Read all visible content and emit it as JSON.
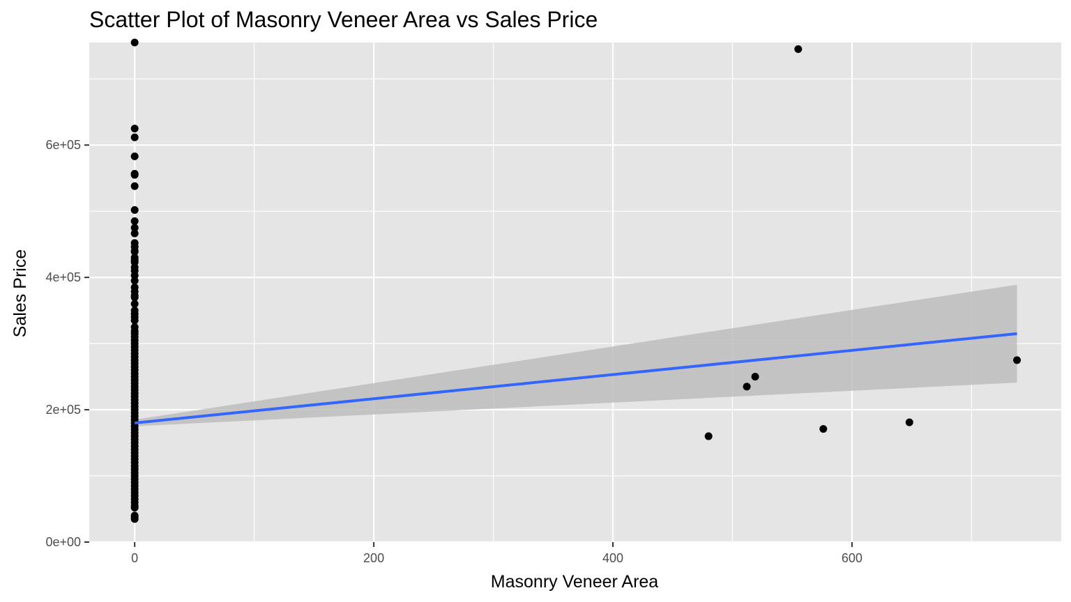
{
  "chart_data": {
    "type": "scatter",
    "title": "Scatter Plot of Masonry Veneer Area vs Sales Price",
    "xlabel": "Masonry Veneer Area",
    "ylabel": "Sales Price",
    "xlim": [
      -38,
      775
    ],
    "ylim": [
      0,
      755000
    ],
    "x_ticks": [
      0,
      200,
      400,
      600
    ],
    "x_tick_labels": [
      "0",
      "200",
      "400",
      "600"
    ],
    "x_minor_ticks": [
      100,
      300,
      500,
      700
    ],
    "y_ticks": [
      0,
      200000,
      400000,
      600000
    ],
    "y_tick_labels": [
      "0e+00",
      "2e+05",
      "4e+05",
      "6e+05"
    ],
    "y_minor_ticks": [
      100000,
      300000,
      500000,
      700000
    ],
    "grid": true,
    "colors": {
      "panel_background": "#e5e5e5",
      "grid": "#ffffff",
      "points": "#000000",
      "fit_line": "#3366ff",
      "confidence_band": "#bdbdbd"
    },
    "points": [
      {
        "x": 0,
        "y": 755000
      },
      {
        "x": 0,
        "y": 625000
      },
      {
        "x": 0,
        "y": 611657
      },
      {
        "x": 0,
        "y": 582933
      },
      {
        "x": 0,
        "y": 556581
      },
      {
        "x": 0,
        "y": 555000
      },
      {
        "x": 0,
        "y": 538000
      },
      {
        "x": 0,
        "y": 501837
      },
      {
        "x": 0,
        "y": 485000
      },
      {
        "x": 0,
        "y": 475000
      },
      {
        "x": 0,
        "y": 466500
      },
      {
        "x": 0,
        "y": 451950
      },
      {
        "x": 0,
        "y": 446261
      },
      {
        "x": 0,
        "y": 440000
      },
      {
        "x": 0,
        "y": 438780
      },
      {
        "x": 0,
        "y": 430000
      },
      {
        "x": 0,
        "y": 426000
      },
      {
        "x": 0,
        "y": 423000
      },
      {
        "x": 0,
        "y": 415298
      },
      {
        "x": 0,
        "y": 410000
      },
      {
        "x": 0,
        "y": 402861
      },
      {
        "x": 0,
        "y": 395000
      },
      {
        "x": 0,
        "y": 385000
      },
      {
        "x": 0,
        "y": 378500
      },
      {
        "x": 0,
        "y": 372500
      },
      {
        "x": 0,
        "y": 369900
      },
      {
        "x": 0,
        "y": 360000
      },
      {
        "x": 0,
        "y": 350000
      },
      {
        "x": 0,
        "y": 345000
      },
      {
        "x": 0,
        "y": 340000
      },
      {
        "x": 0,
        "y": 335000
      },
      {
        "x": 0,
        "y": 325000
      },
      {
        "x": 0,
        "y": 319000
      },
      {
        "x": 0,
        "y": 315000
      },
      {
        "x": 0,
        "y": 310000
      },
      {
        "x": 0,
        "y": 305000
      },
      {
        "x": 0,
        "y": 300000
      },
      {
        "x": 0,
        "y": 295000
      },
      {
        "x": 0,
        "y": 290000
      },
      {
        "x": 0,
        "y": 285000
      },
      {
        "x": 0,
        "y": 280000
      },
      {
        "x": 0,
        "y": 275000
      },
      {
        "x": 0,
        "y": 270000
      },
      {
        "x": 0,
        "y": 265000
      },
      {
        "x": 0,
        "y": 260000
      },
      {
        "x": 0,
        "y": 255000
      },
      {
        "x": 0,
        "y": 250000
      },
      {
        "x": 0,
        "y": 245000
      },
      {
        "x": 0,
        "y": 240000
      },
      {
        "x": 0,
        "y": 235000
      },
      {
        "x": 0,
        "y": 230000
      },
      {
        "x": 0,
        "y": 225000
      },
      {
        "x": 0,
        "y": 220000
      },
      {
        "x": 0,
        "y": 215000
      },
      {
        "x": 0,
        "y": 210000
      },
      {
        "x": 0,
        "y": 205000
      },
      {
        "x": 0,
        "y": 200000
      },
      {
        "x": 0,
        "y": 195000
      },
      {
        "x": 0,
        "y": 190000
      },
      {
        "x": 0,
        "y": 185000
      },
      {
        "x": 0,
        "y": 180000
      },
      {
        "x": 0,
        "y": 175000
      },
      {
        "x": 0,
        "y": 170000
      },
      {
        "x": 0,
        "y": 165000
      },
      {
        "x": 0,
        "y": 160000
      },
      {
        "x": 0,
        "y": 155000
      },
      {
        "x": 0,
        "y": 150000
      },
      {
        "x": 0,
        "y": 145000
      },
      {
        "x": 0,
        "y": 140000
      },
      {
        "x": 0,
        "y": 135000
      },
      {
        "x": 0,
        "y": 130000
      },
      {
        "x": 0,
        "y": 125000
      },
      {
        "x": 0,
        "y": 120000
      },
      {
        "x": 0,
        "y": 115000
      },
      {
        "x": 0,
        "y": 110000
      },
      {
        "x": 0,
        "y": 105000
      },
      {
        "x": 0,
        "y": 100000
      },
      {
        "x": 0,
        "y": 95000
      },
      {
        "x": 0,
        "y": 90000
      },
      {
        "x": 0,
        "y": 85000
      },
      {
        "x": 0,
        "y": 80000
      },
      {
        "x": 0,
        "y": 75000
      },
      {
        "x": 0,
        "y": 70000
      },
      {
        "x": 0,
        "y": 65000
      },
      {
        "x": 0,
        "y": 60000
      },
      {
        "x": 0,
        "y": 55000
      },
      {
        "x": 0,
        "y": 52000
      },
      {
        "x": 0,
        "y": 40000
      },
      {
        "x": 0,
        "y": 37900
      },
      {
        "x": 0,
        "y": 34900
      },
      {
        "x": 480,
        "y": 160000
      },
      {
        "x": 512,
        "y": 235000
      },
      {
        "x": 519,
        "y": 250000
      },
      {
        "x": 555,
        "y": 745000
      },
      {
        "x": 576,
        "y": 171000
      },
      {
        "x": 648,
        "y": 181000
      },
      {
        "x": 738,
        "y": 275000
      }
    ],
    "fit": {
      "method": "lm",
      "x": [
        0,
        738
      ],
      "y": [
        180000,
        315000
      ]
    },
    "confidence_band": {
      "x": [
        0,
        738
      ],
      "lower": [
        175000,
        241000
      ],
      "upper": [
        185000,
        389000
      ]
    }
  }
}
